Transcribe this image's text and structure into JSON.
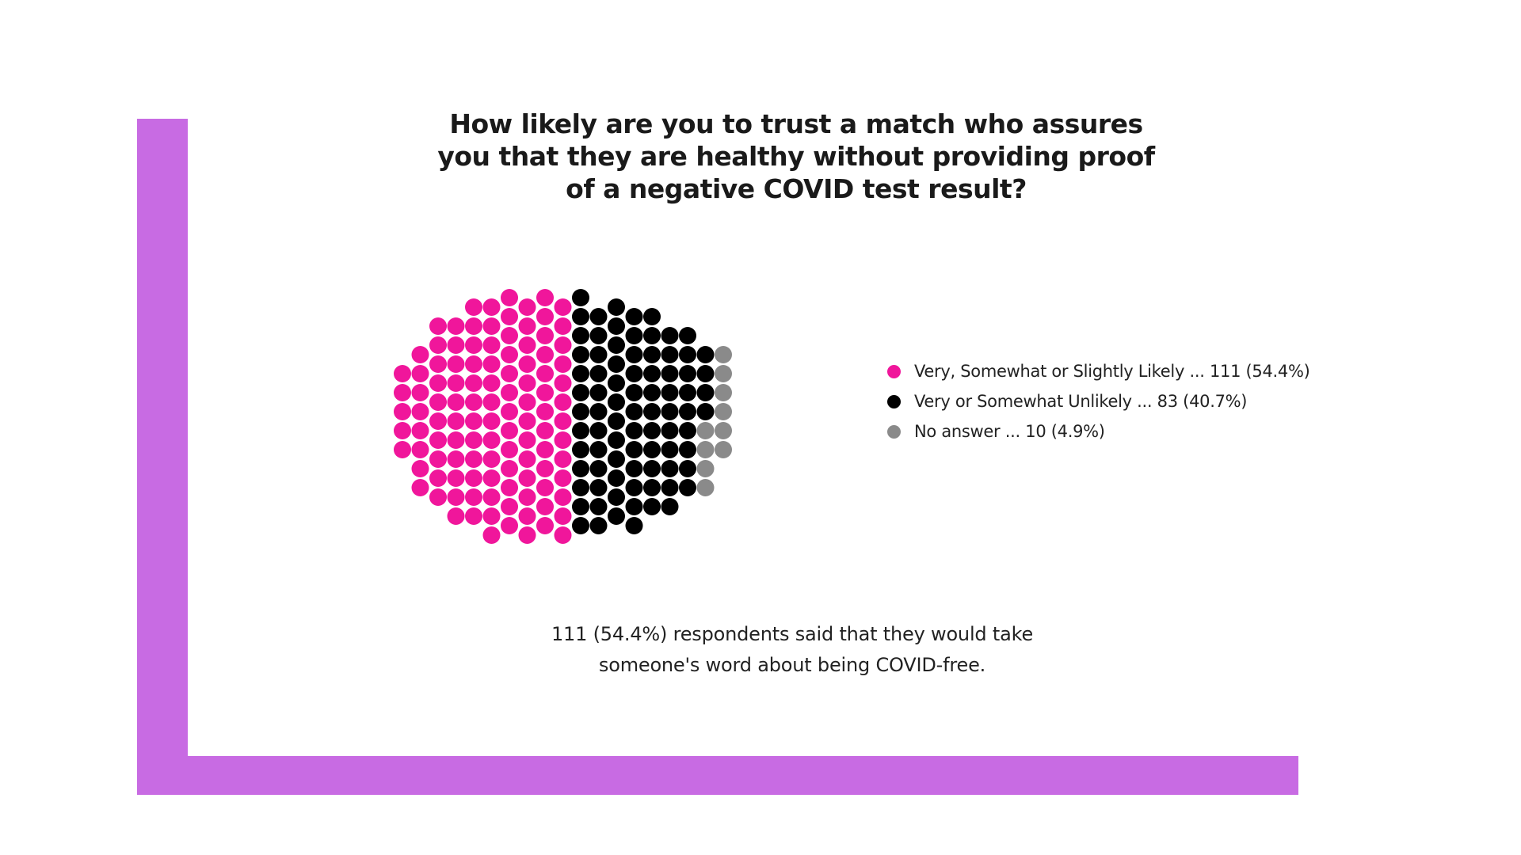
{
  "title": {
    "lines": [
      "How likely are you to trust a match who assures",
      "you that they are healthy without providing proof",
      "of a negative COVID test result?"
    ]
  },
  "chart_data": {
    "type": "dot-cluster",
    "title": "How likely are you to trust a match who assures you that they are healthy without providing proof of a negative COVID test result?",
    "total": 204,
    "series": [
      {
        "name": "Very, Somewhat or Slightly Likely",
        "count": 111,
        "percent": 54.4,
        "color": "#f0169b",
        "legend_label": "Very, Somewhat or Slightly Likely ... 111 (54.4%)"
      },
      {
        "name": "Very or Somewhat Unlikely",
        "count": 83,
        "percent": 40.7,
        "color": "#000000",
        "legend_label": "Very or Somewhat Unlikely ... 83 (40.7%)"
      },
      {
        "name": "No answer",
        "count": 10,
        "percent": 4.9,
        "color": "#8a8a8a",
        "legend_label": "No answer ... 10 (4.9%)"
      }
    ],
    "legend_position": "right"
  },
  "caption": {
    "lines": [
      "111 (54.4%) respondents said that they would take",
      "someone's word about being COVID-free."
    ]
  },
  "colors": {
    "frame": "#c86be3",
    "background": "#ffffff",
    "text": "#1a1a1a"
  }
}
